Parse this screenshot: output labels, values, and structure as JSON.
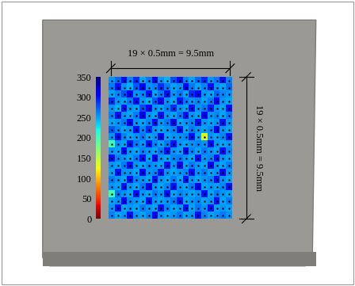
{
  "chart_data": {
    "type": "heatmap",
    "annotations": [
      "19 × 0.5mm = 9.5mm",
      "19 × 0.5mm = 9.5mm"
    ],
    "tick_labels": false,
    "cells": [
      [
        255,
        270,
        300,
        260,
        290,
        250,
        265,
        310,
        255,
        245,
        280,
        300,
        260,
        250,
        270,
        290,
        255,
        265,
        300,
        260
      ],
      [
        265,
        300,
        255,
        245,
        275,
        305,
        255,
        260,
        290,
        265,
        250,
        255,
        310,
        265,
        250,
        260,
        300,
        255,
        250,
        270
      ],
      [
        250,
        260,
        280,
        310,
        255,
        260,
        300,
        250,
        265,
        300,
        255,
        265,
        250,
        290,
        305,
        255,
        250,
        270,
        260,
        255
      ],
      [
        290,
        255,
        250,
        265,
        300,
        255,
        245,
        275,
        310,
        255,
        250,
        300,
        265,
        255,
        260,
        250,
        265,
        310,
        255,
        250
      ],
      [
        255,
        245,
        300,
        255,
        250,
        280,
        305,
        255,
        250,
        260,
        290,
        255,
        250,
        300,
        255,
        265,
        295,
        255,
        250,
        300
      ],
      [
        260,
        300,
        255,
        250,
        265,
        310,
        255,
        250,
        300,
        255,
        250,
        265,
        300,
        255,
        250,
        305,
        255,
        260,
        250,
        265
      ],
      [
        250,
        255,
        265,
        305,
        255,
        250,
        260,
        300,
        255,
        265,
        305,
        250,
        255,
        260,
        300,
        255,
        250,
        255,
        300,
        255
      ],
      [
        275,
        260,
        250,
        255,
        300,
        260,
        290,
        255,
        250,
        255,
        260,
        300,
        250,
        265,
        255,
        250,
        260,
        305,
        255,
        250
      ],
      [
        255,
        300,
        260,
        250,
        255,
        265,
        250,
        255,
        305,
        250,
        255,
        255,
        260,
        300,
        250,
        135,
        255,
        250,
        260,
        300
      ],
      [
        200,
        255,
        250,
        300,
        265,
        255,
        300,
        260,
        250,
        265,
        300,
        255,
        250,
        255,
        260,
        255,
        300,
        255,
        250,
        255
      ],
      [
        255,
        250,
        305,
        255,
        250,
        260,
        255,
        250,
        265,
        300,
        255,
        250,
        305,
        260,
        250,
        265,
        255,
        250,
        300,
        260
      ],
      [
        300,
        260,
        255,
        250,
        265,
        300,
        250,
        305,
        255,
        250,
        260,
        265,
        255,
        250,
        300,
        255,
        260,
        300,
        255,
        250
      ],
      [
        255,
        250,
        265,
        300,
        255,
        250,
        260,
        255,
        250,
        300,
        255,
        305,
        250,
        265,
        255,
        250,
        305,
        255,
        250,
        265
      ],
      [
        250,
        300,
        255,
        255,
        250,
        305,
        255,
        260,
        300,
        255,
        250,
        255,
        260,
        300,
        255,
        265,
        250,
        255,
        305,
        255
      ],
      [
        265,
        255,
        250,
        300,
        260,
        255,
        250,
        300,
        255,
        250,
        265,
        250,
        300,
        255,
        250,
        255,
        260,
        300,
        255,
        250
      ],
      [
        255,
        250,
        300,
        255,
        250,
        265,
        305,
        255,
        250,
        260,
        300,
        255,
        250,
        265,
        305,
        250,
        255,
        250,
        260,
        300
      ],
      [
        200,
        265,
        255,
        250,
        300,
        255,
        250,
        265,
        255,
        300,
        250,
        260,
        255,
        250,
        255,
        300,
        250,
        265,
        255,
        250
      ],
      [
        250,
        255,
        305,
        260,
        255,
        250,
        300,
        255,
        250,
        255,
        265,
        300,
        250,
        255,
        260,
        250,
        255,
        300,
        250,
        265
      ],
      [
        255,
        300,
        250,
        255,
        250,
        265,
        255,
        250,
        300,
        260,
        250,
        255,
        300,
        250,
        265,
        255,
        300,
        250,
        255,
        250
      ],
      [
        260,
        250,
        255,
        300,
        255,
        250,
        260,
        305,
        255,
        250,
        255,
        265,
        250,
        255,
        300,
        260,
        250,
        255,
        265,
        255
      ]
    ],
    "colorbar": {
      "range": [
        0,
        350
      ],
      "ticks": [
        0,
        50,
        100,
        150,
        200,
        250,
        300,
        350
      ]
    }
  }
}
